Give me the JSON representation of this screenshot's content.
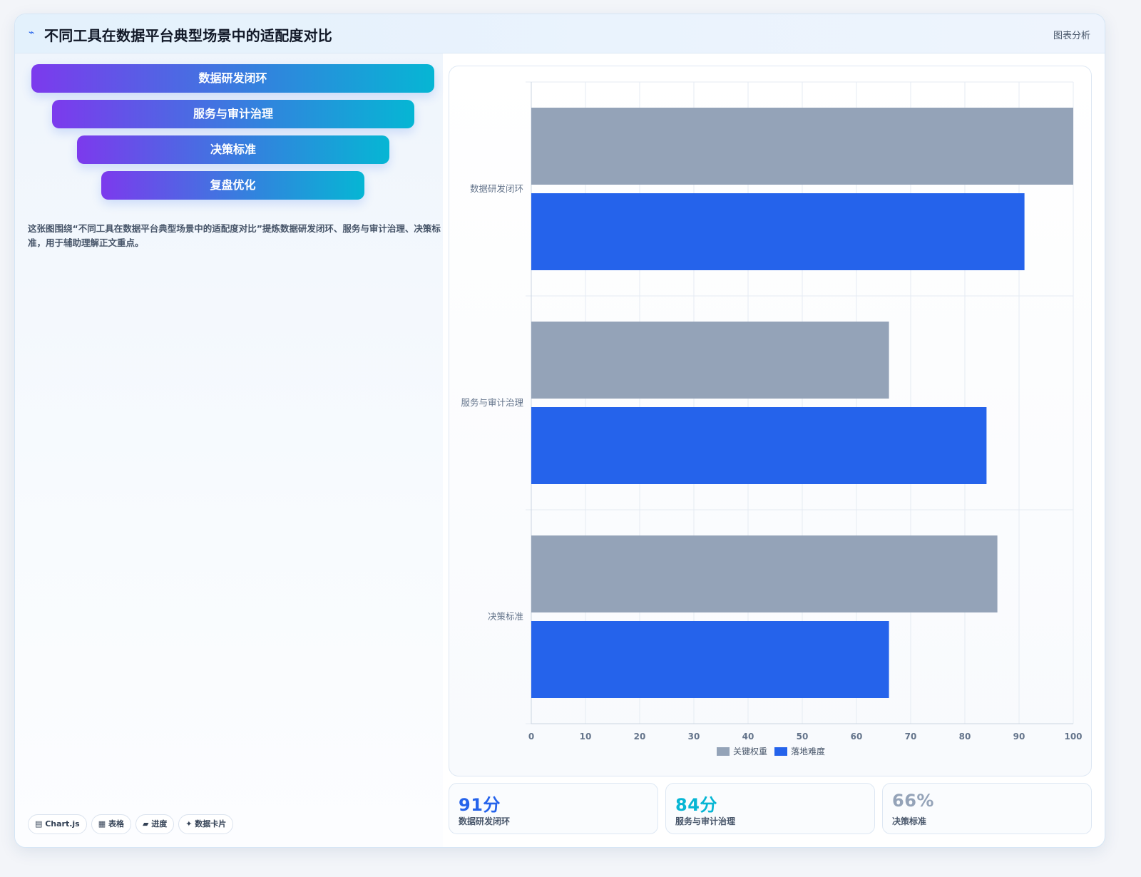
{
  "header": {
    "icon": "sparkline-icon",
    "title": "不同工具在数据平台典型场景中的适配度对比",
    "tag": "图表分析"
  },
  "funnel": {
    "steps": [
      {
        "label": "数据研发闭环"
      },
      {
        "label": "服务与审计治理"
      },
      {
        "label": "决策标准"
      },
      {
        "label": "复盘优化"
      }
    ],
    "gradient": [
      "#7c3aed",
      "#06b6d4"
    ]
  },
  "description": "这张图围绕“不同工具在数据平台典型场景中的适配度对比”提炼数据研发闭环、服务与审计治理、决策标准，用于辅助理解正文重点。",
  "chips": [
    "▤ Chart.js",
    "▦ 表格",
    "▰ 进度",
    "✦ 数据卡片"
  ],
  "chart_data": {
    "type": "bar",
    "orientation": "horizontal",
    "categories": [
      "数据研发闭环",
      "服务与审计治理",
      "决策标准"
    ],
    "series": [
      {
        "name": "关键权重",
        "color": "#94a3b8",
        "values": [
          100,
          66,
          86
        ]
      },
      {
        "name": "落地难度",
        "color": "#2563eb",
        "values": [
          91,
          84,
          66
        ]
      }
    ],
    "xlim": [
      0,
      100
    ],
    "xticks": [
      0,
      10,
      20,
      30,
      40,
      50,
      60,
      70,
      80,
      90,
      100
    ],
    "grid": true,
    "legend": "bottom"
  },
  "kpis": [
    {
      "value": "91分",
      "label": "数据研发闭环",
      "color": "#2563eb"
    },
    {
      "value": "84分",
      "label": "服务与审计治理",
      "color": "#06b6d4"
    },
    {
      "value": "66%",
      "label": "决策标准",
      "color": "#94a3b8"
    }
  ]
}
